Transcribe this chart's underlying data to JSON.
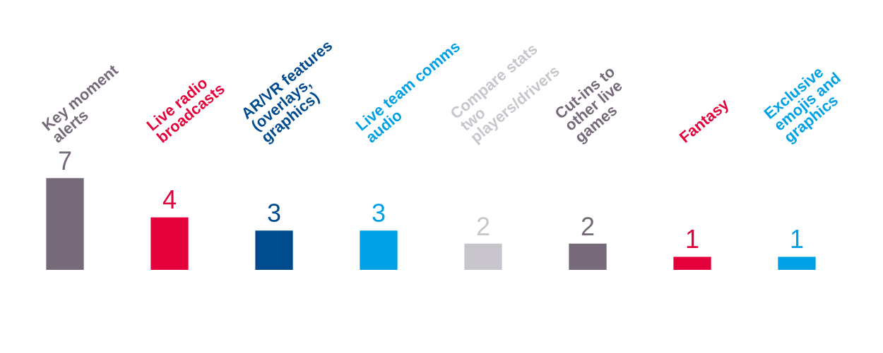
{
  "chart_data": {
    "type": "bar",
    "categories": [
      "Key moment alerts",
      "Live radio broadcasts",
      "AR/VR features (overlays, graphics)",
      "Live team comms audio",
      "Compare stats two players/drivers",
      "Cut-ins to other live games",
      "Fantasy",
      "Exclusive emojis and graphics"
    ],
    "values": [
      7,
      4,
      3,
      3,
      2,
      2,
      1,
      1
    ],
    "colors": [
      "#76697a",
      "#e4003a",
      "#004b8d",
      "#00a0e4",
      "#c8c6cc",
      "#76697a",
      "#e4003a",
      "#00a0e4"
    ],
    "data_labels": true,
    "grid": false,
    "legend": false
  }
}
